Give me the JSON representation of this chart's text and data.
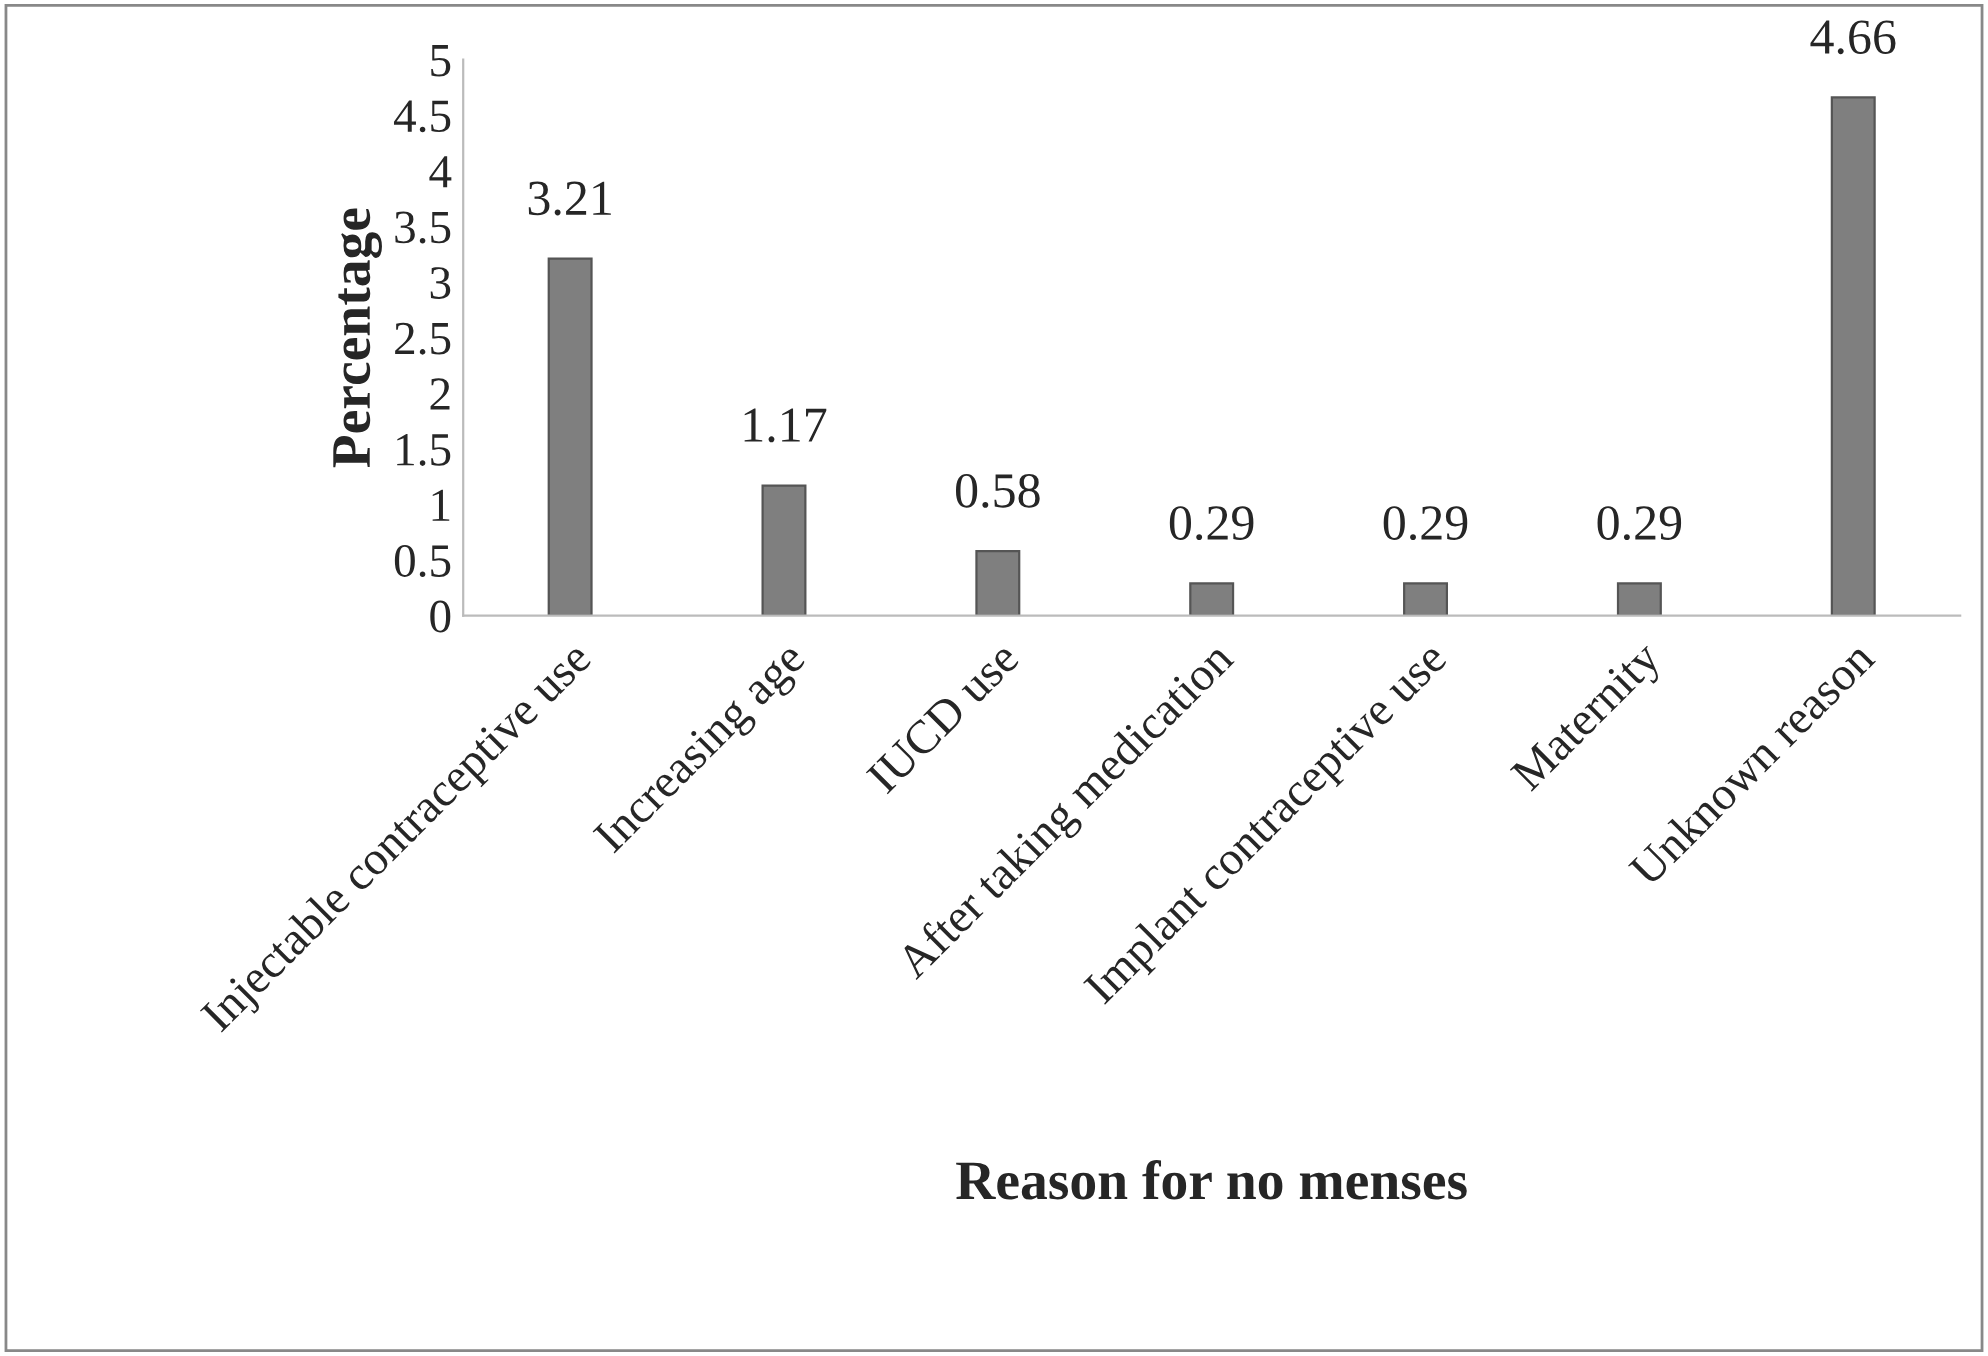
{
  "chart_data": {
    "type": "bar",
    "xlabel": "Reason for no menses",
    "ylabel": "Percentage",
    "categories": [
      "Injectable contraceptive use",
      "Increasing age",
      "IUCD use",
      "After taking medication",
      "Implant contraceptive use",
      "Maternity",
      "Unknown reason"
    ],
    "values": [
      3.21,
      1.17,
      0.58,
      0.29,
      0.29,
      0.29,
      4.66
    ],
    "color": "#7f7f7f",
    "data_labels": true,
    "ylim": [
      0,
      5
    ],
    "yticks": [
      0,
      0.5,
      1,
      1.5,
      2,
      2.5,
      3,
      3.5,
      4,
      4.5,
      5
    ],
    "grid": false
  }
}
